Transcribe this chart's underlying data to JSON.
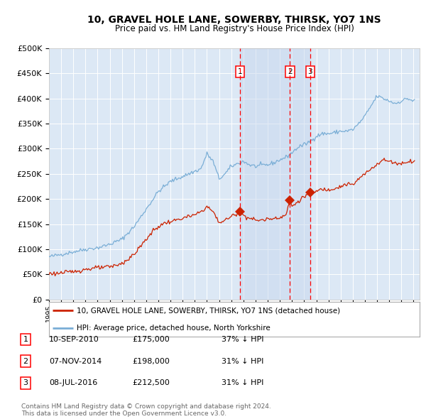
{
  "title": "10, GRAVEL HOLE LANE, SOWERBY, THIRSK, YO7 1NS",
  "subtitle": "Price paid vs. HM Land Registry's House Price Index (HPI)",
  "background_color": "#ffffff",
  "plot_bg_color": "#dce8f5",
  "grid_color": "#ffffff",
  "hpi_color": "#7aaed6",
  "price_color": "#cc2200",
  "span_color": "#c8d8ee",
  "transactions_t": [
    2010.708,
    2014.833,
    2016.5
  ],
  "trans_prices": [
    175000,
    198000,
    212500
  ],
  "trans_labels": [
    "1",
    "2",
    "3"
  ],
  "transaction_table": [
    {
      "num": "1",
      "date": "10-SEP-2010",
      "price": "£175,000",
      "hpi": "37% ↓ HPI"
    },
    {
      "num": "2",
      "date": "07-NOV-2014",
      "price": "£198,000",
      "hpi": "31% ↓ HPI"
    },
    {
      "num": "3",
      "date": "08-JUL-2016",
      "price": "£212,500",
      "hpi": "31% ↓ HPI"
    }
  ],
  "legend_line1": "10, GRAVEL HOLE LANE, SOWERBY, THIRSK, YO7 1NS (detached house)",
  "legend_line2": "HPI: Average price, detached house, North Yorkshire",
  "footer": "Contains HM Land Registry data © Crown copyright and database right 2024.\nThis data is licensed under the Open Government Licence v3.0.",
  "ylim": [
    0,
    500000
  ],
  "yticks": [
    0,
    50000,
    100000,
    150000,
    200000,
    250000,
    300000,
    350000,
    400000,
    450000,
    500000
  ],
  "xmin": 1995.0,
  "xmax": 2025.5,
  "hpi_anchors_t": [
    1995.0,
    1996.0,
    1997.0,
    1998.0,
    1999.0,
    2000.0,
    2001.0,
    2002.0,
    2003.0,
    2004.0,
    2005.0,
    2006.0,
    2007.0,
    2007.5,
    2008.0,
    2008.5,
    2009.0,
    2009.5,
    2010.0,
    2010.5,
    2011.0,
    2011.5,
    2012.0,
    2012.5,
    2013.0,
    2013.5,
    2014.0,
    2014.5,
    2015.0,
    2015.5,
    2016.0,
    2016.5,
    2017.0,
    2017.5,
    2018.0,
    2018.5,
    2019.0,
    2019.5,
    2020.0,
    2020.5,
    2021.0,
    2021.5,
    2022.0,
    2022.5,
    2023.0,
    2023.5,
    2024.0,
    2024.5,
    2025.0
  ],
  "hpi_anchors_v": [
    85000,
    90000,
    95000,
    100000,
    103000,
    110000,
    120000,
    145000,
    180000,
    215000,
    235000,
    245000,
    255000,
    260000,
    290000,
    275000,
    240000,
    250000,
    265000,
    270000,
    275000,
    268000,
    265000,
    267000,
    268000,
    272000,
    278000,
    283000,
    292000,
    303000,
    308000,
    315000,
    325000,
    330000,
    330000,
    332000,
    335000,
    335000,
    338000,
    350000,
    365000,
    385000,
    405000,
    400000,
    395000,
    390000,
    395000,
    400000,
    395000
  ],
  "price_anchors_t": [
    1995.0,
    1995.5,
    1996.0,
    1996.5,
    1997.0,
    1997.5,
    1998.0,
    1998.5,
    1999.0,
    1999.5,
    2000.0,
    2000.5,
    2001.0,
    2001.5,
    2002.0,
    2002.5,
    2003.0,
    2003.5,
    2004.0,
    2004.5,
    2005.0,
    2005.5,
    2006.0,
    2006.5,
    2007.0,
    2007.5,
    2008.0,
    2008.5,
    2009.0,
    2009.5,
    2010.0,
    2010.708,
    2011.0,
    2011.5,
    2012.0,
    2012.5,
    2013.0,
    2013.5,
    2014.0,
    2014.5,
    2014.833,
    2015.0,
    2015.5,
    2016.0,
    2016.5,
    2017.0,
    2017.5,
    2018.0,
    2018.5,
    2019.0,
    2019.5,
    2020.0,
    2020.5,
    2021.0,
    2021.5,
    2022.0,
    2022.5,
    2023.0,
    2023.5,
    2024.0,
    2024.5,
    2025.0
  ],
  "price_anchors_v": [
    52000,
    52000,
    53000,
    54000,
    56000,
    58000,
    60000,
    62000,
    63000,
    64000,
    65000,
    68000,
    72000,
    80000,
    90000,
    105000,
    120000,
    135000,
    145000,
    152000,
    155000,
    158000,
    162000,
    165000,
    168000,
    175000,
    185000,
    175000,
    153000,
    158000,
    165000,
    175000,
    168000,
    162000,
    158000,
    158000,
    160000,
    162000,
    164000,
    168000,
    198000,
    185000,
    195000,
    205000,
    212500,
    215000,
    220000,
    218000,
    222000,
    225000,
    230000,
    228000,
    240000,
    250000,
    260000,
    270000,
    278000,
    275000,
    272000,
    270000,
    275000,
    275000
  ]
}
